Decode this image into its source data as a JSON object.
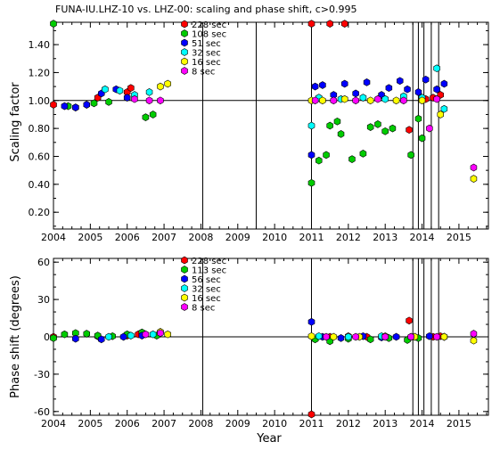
{
  "chart_data": [
    {
      "type": "scatter",
      "title": "FUNA-IU.LHZ-10 vs. LHZ-00: scaling and phase shift, c>0.995",
      "xlabel": "",
      "ylabel": "Scaling factor",
      "xlim": [
        2004.0,
        2015.8
      ],
      "ylim": [
        0.08,
        1.56
      ],
      "x_ticks": [
        "2004",
        "2005",
        "2006",
        "2007",
        "2008",
        "2009",
        "2010",
        "2011",
        "2012",
        "2013",
        "2014",
        "2015"
      ],
      "y_ticks": [
        "0.20",
        "0.40",
        "0.60",
        "0.80",
        "1.00",
        "1.20",
        "1.40"
      ],
      "reference_line": 1.0,
      "vertical_lines": [
        2004.0,
        2008.05,
        2009.5,
        2011.0,
        2013.75,
        2013.9,
        2014.05,
        2014.25,
        2014.45
      ],
      "legend_position": "top-center",
      "series": [
        {
          "name": "228 sec",
          "color": "#ff0000",
          "x": [
            2004.0,
            2005.2,
            2006.0,
            2006.1,
            2011.0,
            2011.5,
            2011.9,
            2013.65,
            2014.3,
            2014.5,
            2014.1
          ],
          "y": [
            0.97,
            1.02,
            1.06,
            1.09,
            1.55,
            1.55,
            1.55,
            0.79,
            1.02,
            1.04,
            1.01
          ]
        },
        {
          "name": "108 sec",
          "color": "#00cc00",
          "x": [
            2004.0,
            2004.4,
            2004.6,
            2004.9,
            2005.1,
            2005.5,
            2006.5,
            2006.7,
            2011.0,
            2011.2,
            2011.4,
            2011.5,
            2011.7,
            2011.8,
            2012.1,
            2012.4,
            2012.6,
            2012.8,
            2013.0,
            2013.2,
            2013.7,
            2013.9,
            2014.0
          ],
          "y": [
            1.55,
            0.96,
            0.95,
            0.97,
            0.98,
            0.99,
            0.88,
            0.9,
            0.41,
            0.57,
            0.61,
            0.82,
            0.85,
            0.76,
            0.58,
            0.62,
            0.81,
            0.83,
            0.78,
            0.8,
            0.61,
            0.87,
            0.73
          ]
        },
        {
          "name": "51 sec",
          "color": "#0000ff",
          "x": [
            2004.3,
            2004.6,
            2004.9,
            2005.3,
            2005.7,
            2006.0,
            2011.0,
            2011.1,
            2011.3,
            2011.6,
            2011.9,
            2012.2,
            2012.5,
            2012.9,
            2013.1,
            2013.4,
            2013.6,
            2013.9,
            2014.1,
            2014.4,
            2014.6
          ],
          "y": [
            0.96,
            0.95,
            0.97,
            1.05,
            1.08,
            1.02,
            0.61,
            1.1,
            1.11,
            1.04,
            1.12,
            1.05,
            1.13,
            1.04,
            1.09,
            1.14,
            1.08,
            1.06,
            1.15,
            1.08,
            1.12
          ]
        },
        {
          "name": "32 sec",
          "color": "#00ffff",
          "x": [
            2005.4,
            2005.8,
            2006.2,
            2006.6,
            2011.0,
            2011.2,
            2011.8,
            2012.4,
            2013.0,
            2013.5,
            2014.0,
            2014.4,
            2014.6
          ],
          "y": [
            1.08,
            1.07,
            1.04,
            1.06,
            0.82,
            1.02,
            1.01,
            1.02,
            1.01,
            1.03,
            1.02,
            1.23,
            0.94
          ]
        },
        {
          "name": "16 sec",
          "color": "#ffff00",
          "x": [
            2006.9,
            2007.1,
            2011.0,
            2011.3,
            2011.9,
            2012.6,
            2013.3,
            2014.0,
            2014.5,
            2015.4
          ],
          "y": [
            1.1,
            1.12,
            1.0,
            1.0,
            1.01,
            1.0,
            1.0,
            1.0,
            0.9,
            0.44
          ]
        },
        {
          "name": "8 sec",
          "color": "#ff00ff",
          "x": [
            2006.2,
            2006.6,
            2006.9,
            2011.1,
            2011.6,
            2012.2,
            2012.8,
            2013.5,
            2014.2,
            2014.4,
            2015.4
          ],
          "y": [
            1.01,
            1.0,
            1.0,
            1.0,
            1.0,
            1.0,
            1.01,
            1.0,
            0.8,
            1.01,
            0.52
          ]
        }
      ]
    },
    {
      "type": "scatter",
      "title": "",
      "xlabel": "Year",
      "ylabel": "Phase shift (degrees)",
      "xlim": [
        2004.0,
        2015.8
      ],
      "ylim": [
        -63,
        63
      ],
      "x_ticks": [
        "2004",
        "2005",
        "2006",
        "2007",
        "2008",
        "2009",
        "2010",
        "2011",
        "2012",
        "2013",
        "2014",
        "2015"
      ],
      "y_ticks": [
        "-60",
        "-30",
        "0",
        "30",
        "60"
      ],
      "reference_line": 0,
      "vertical_lines": [
        2004.0,
        2008.05,
        2011.0,
        2013.75,
        2013.9,
        2014.05,
        2014.25,
        2014.45
      ],
      "legend_position": "top-center",
      "series": [
        {
          "name": "228 sec",
          "color": "#ff0000",
          "x": [
            2004.0,
            2005.2,
            2006.0,
            2006.3,
            2011.0,
            2011.5,
            2012.0,
            2012.5,
            2013.65,
            2014.3,
            2014.5
          ],
          "y": [
            0.0,
            0.5,
            1.0,
            2.0,
            -65.0,
            0.0,
            0.5,
            0.0,
            13.0,
            0.0,
            0.5
          ]
        },
        {
          "name": "113 sec",
          "color": "#00cc00",
          "x": [
            2004.0,
            2004.3,
            2004.6,
            2004.9,
            2005.2,
            2005.6,
            2006.0,
            2006.4,
            2006.8,
            2011.1,
            2011.5,
            2012.0,
            2012.6,
            2013.1,
            2013.6,
            2013.9
          ],
          "y": [
            -1.0,
            2.0,
            3.0,
            2.5,
            1.0,
            0.5,
            2.0,
            3.5,
            1.0,
            -2.0,
            -3.5,
            -1.5,
            -2.0,
            -1.0,
            -2.5,
            -1.0
          ]
        },
        {
          "name": "56 sec",
          "color": "#0000ff",
          "x": [
            2004.6,
            2005.3,
            2005.9,
            2006.4,
            2011.0,
            2011.3,
            2011.8,
            2012.4,
            2012.9,
            2013.3,
            2013.8,
            2014.2,
            2014.6
          ],
          "y": [
            -1.5,
            -2.0,
            0.0,
            1.0,
            12.0,
            0.0,
            -1.0,
            0.5,
            -0.5,
            0.0,
            0.0,
            0.5,
            0.0
          ]
        },
        {
          "name": "32 sec",
          "color": "#00ffff",
          "x": [
            2005.5,
            2006.1,
            2006.7,
            2011.2,
            2012.0,
            2012.9,
            2013.7,
            2014.6
          ],
          "y": [
            0.0,
            1.0,
            2.0,
            0.5,
            0.0,
            0.5,
            0.0,
            0.0
          ]
        },
        {
          "name": "16 sec",
          "color": "#ffff00",
          "x": [
            2006.9,
            2007.1,
            2011.0,
            2011.6,
            2012.3,
            2013.0,
            2013.8,
            2014.6,
            2015.4
          ],
          "y": [
            4.0,
            2.0,
            0.5,
            0.0,
            0.0,
            0.5,
            0.0,
            0.0,
            -3.0
          ]
        },
        {
          "name": "8 sec",
          "color": "#ff00ff",
          "x": [
            2006.5,
            2006.9,
            2011.4,
            2012.2,
            2013.0,
            2013.7,
            2014.4,
            2015.4
          ],
          "y": [
            2.0,
            3.0,
            0.0,
            0.0,
            0.0,
            0.0,
            0.0,
            2.5
          ]
        }
      ]
    }
  ]
}
